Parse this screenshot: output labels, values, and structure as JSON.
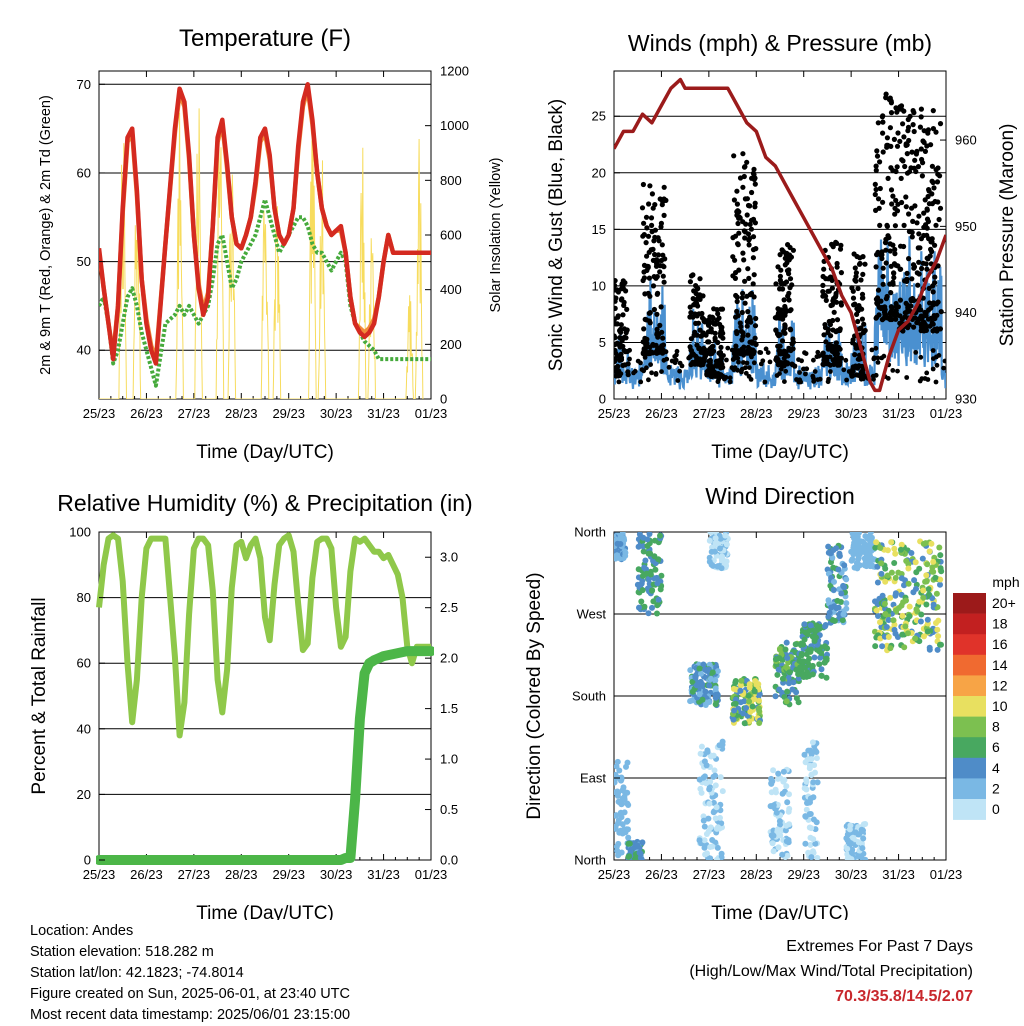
{
  "metadata": {
    "location": "Location: Andes",
    "elevation": "Station elevation: 518.282 m",
    "latlon": "Station lat/lon: 42.1823; -74.8014",
    "created": "Figure created on Sun, 2025-06-01, at 23:40 UTC",
    "recent": "Most recent data timestamp: 2025/06/01 23:15:00"
  },
  "extremes": {
    "line1": "Extremes For Past 7 Days",
    "line2": "(High/Low/Max Wind/Total Precipitation)",
    "values": "70.3/35.8/14.5/2.07",
    "color": "#c8282d"
  },
  "chart_data": [
    {
      "id": "temperature",
      "type": "line",
      "title": "Temperature (F)",
      "xlabel": "Time (Day/UTC)",
      "ylabel": "2m & 9m T (Red, Orange) & 2m Td (Green)",
      "y2label": "Solar Insolation (Yellow)",
      "xlim": [
        0,
        7
      ],
      "xticks": [
        "25/23",
        "26/23",
        "27/23",
        "28/23",
        "29/23",
        "30/23",
        "31/23",
        "01/23"
      ],
      "ylim": [
        34.5,
        71.5
      ],
      "yticks": [
        40,
        50,
        60,
        70
      ],
      "y2lim": [
        0,
        1200
      ],
      "y2ticks": [
        0,
        200,
        400,
        600,
        800,
        1000,
        1200
      ],
      "x": [
        0,
        0.1,
        0.2,
        0.3,
        0.4,
        0.5,
        0.6,
        0.7,
        0.8,
        0.9,
        1.0,
        1.1,
        1.2,
        1.4,
        1.6,
        1.7,
        1.8,
        1.9,
        2.0,
        2.1,
        2.2,
        2.3,
        2.4,
        2.5,
        2.6,
        2.7,
        2.8,
        2.9,
        3.0,
        3.1,
        3.2,
        3.3,
        3.4,
        3.5,
        3.6,
        3.7,
        3.8,
        3.9,
        4.0,
        4.1,
        4.2,
        4.3,
        4.4,
        4.5,
        4.6,
        4.7,
        4.8,
        4.9,
        5.0,
        5.1,
        5.2,
        5.3,
        5.4,
        5.5,
        5.6,
        5.7,
        5.8,
        5.9,
        6.0,
        6.1,
        6.2,
        6.3,
        6.4,
        6.5,
        6.6,
        6.7,
        6.8,
        6.9,
        7.0
      ],
      "series": [
        {
          "name": "2m T",
          "color": "#d42a20",
          "values": [
            51.5,
            47,
            43,
            39,
            45,
            56,
            64,
            65,
            58,
            48,
            43,
            40,
            38.5,
            52,
            65,
            69.5,
            68,
            62,
            53,
            47,
            44,
            46,
            54,
            64,
            66,
            61,
            55,
            52,
            51.5,
            53,
            55,
            59,
            64,
            65,
            62,
            56,
            53,
            52,
            53,
            56,
            63,
            68,
            70,
            66,
            60,
            56,
            54,
            53,
            53.5,
            54,
            51,
            46,
            43,
            42,
            41.5,
            42,
            43,
            46,
            50,
            53,
            51,
            51,
            51,
            51,
            51,
            51,
            51,
            51,
            51
          ]
        },
        {
          "name": "9m T",
          "color": "#f08c3a",
          "values": [
            51,
            47,
            43,
            39.5,
            45,
            55.5,
            63.5,
            64.5,
            57.5,
            48,
            43.5,
            40.5,
            39,
            52,
            64.5,
            69,
            67.5,
            61.5,
            53,
            47.5,
            44.5,
            46.5,
            54,
            63.5,
            65.5,
            60.5,
            55,
            52,
            51.5,
            53,
            55,
            58.5,
            63.5,
            64.5,
            61.5,
            56,
            53,
            52,
            53,
            56,
            62.5,
            67.5,
            69.5,
            65.5,
            60,
            56,
            54,
            53,
            53.5,
            53.5,
            51,
            46,
            43,
            42.5,
            42,
            42.5,
            43.5,
            46,
            50,
            53,
            51,
            51,
            51,
            51,
            51,
            51,
            51,
            51,
            51
          ]
        },
        {
          "name": "2m Td",
          "color": "#46aa3c",
          "values": [
            45,
            46,
            43,
            38.5,
            40,
            43,
            46,
            47,
            45,
            42,
            40,
            38,
            36,
            43,
            44,
            45,
            44,
            45,
            44,
            43,
            44,
            45,
            48,
            52,
            53,
            50,
            47,
            48,
            50,
            51,
            52,
            53,
            55,
            57,
            55,
            53,
            51,
            52,
            53,
            54,
            55,
            55,
            54,
            52,
            51,
            51,
            50,
            49,
            50,
            51,
            50,
            45,
            43,
            42,
            41,
            40.5,
            40,
            39,
            39,
            39,
            39,
            39,
            39,
            39,
            39,
            39,
            39,
            39,
            39
          ]
        }
      ],
      "solar": {
        "name": "Solar Insolation",
        "color": "#f7dc5e",
        "peaks": [
          {
            "x": 0.5,
            "value": 1050
          },
          {
            "x": 0.8,
            "value": 900
          },
          {
            "x": 1.7,
            "value": 1100
          },
          {
            "x": 2.1,
            "value": 1150
          },
          {
            "x": 2.55,
            "value": 1150
          },
          {
            "x": 2.8,
            "value": 950
          },
          {
            "x": 3.5,
            "value": 950
          },
          {
            "x": 3.75,
            "value": 800
          },
          {
            "x": 4.5,
            "value": 1050
          },
          {
            "x": 4.7,
            "value": 900
          },
          {
            "x": 5.55,
            "value": 1000
          },
          {
            "x": 5.75,
            "value": 700
          },
          {
            "x": 6.55,
            "value": 400
          },
          {
            "x": 6.75,
            "value": 1000
          }
        ]
      }
    },
    {
      "id": "winds",
      "type": "scatter",
      "title": "Winds (mph) & Pressure (mb)",
      "xlabel": "Time (Day/UTC)",
      "ylabel": "Sonic Wind & Gust (Blue, Black)",
      "y2label": "Station Pressure (Maroon)",
      "xlim": [
        0,
        7
      ],
      "xticks": [
        "25/23",
        "26/23",
        "27/23",
        "28/23",
        "29/23",
        "30/23",
        "31/23",
        "01/23"
      ],
      "ylim": [
        0,
        29
      ],
      "yticks": [
        0,
        5,
        10,
        15,
        20,
        25
      ],
      "y2lim": [
        930,
        968
      ],
      "y2ticks": [
        930,
        940,
        950,
        960
      ],
      "gust_color": "#000000",
      "wind_color": "#4a90d0",
      "gust_clusters": [
        {
          "start": 0.0,
          "end": 0.3,
          "peak": 11,
          "base": 2
        },
        {
          "start": 0.6,
          "end": 1.1,
          "peak": 19,
          "base": 4
        },
        {
          "start": 1.6,
          "end": 1.9,
          "peak": 11,
          "base": 3
        },
        {
          "start": 1.9,
          "end": 2.3,
          "peak": 8,
          "base": 2
        },
        {
          "start": 2.5,
          "end": 3.0,
          "peak": 22,
          "base": 4
        },
        {
          "start": 3.4,
          "end": 3.8,
          "peak": 14,
          "base": 3
        },
        {
          "start": 4.4,
          "end": 4.8,
          "peak": 14,
          "base": 3
        },
        {
          "start": 5.0,
          "end": 5.3,
          "peak": 13,
          "base": 2
        },
        {
          "start": 5.5,
          "end": 6.0,
          "peak": 27,
          "base": 7
        },
        {
          "start": 6.0,
          "end": 6.9,
          "peak": 26,
          "base": 6
        }
      ],
      "pressure": {
        "name": "Station Pressure",
        "color": "#9b1b1b",
        "x": [
          0,
          0.2,
          0.4,
          0.6,
          0.8,
          1.0,
          1.2,
          1.4,
          1.5,
          1.6,
          1.8,
          2.0,
          2.2,
          2.4,
          2.6,
          2.8,
          3.0,
          3.2,
          3.4,
          3.6,
          3.8,
          4.0,
          4.2,
          4.4,
          4.6,
          4.8,
          5.0,
          5.2,
          5.4,
          5.5,
          5.6,
          5.8,
          6.0,
          6.2,
          6.4,
          6.6,
          6.8,
          7.0
        ],
        "values": [
          959,
          961,
          961,
          963,
          962,
          964,
          966,
          967,
          966,
          966,
          966,
          966,
          966,
          966,
          964,
          962,
          961,
          958,
          957,
          955,
          953,
          951,
          949,
          947,
          945,
          942,
          940,
          936,
          932,
          931,
          931,
          935,
          938,
          939,
          941,
          944,
          946,
          949
        ]
      }
    },
    {
      "id": "humidity",
      "type": "line",
      "title": "Relative Humidity (%) & Precipitation (in)",
      "xlabel": "Time (Day/UTC)",
      "ylabel": "Percent & Total Rainfall",
      "xlim": [
        0,
        7
      ],
      "xticks": [
        "25/23",
        "26/23",
        "27/23",
        "28/23",
        "29/23",
        "30/23",
        "31/23",
        "01/23"
      ],
      "ylim": [
        0,
        100
      ],
      "yticks": [
        0,
        20,
        40,
        60,
        80,
        100
      ],
      "y2lim": [
        0,
        3.25
      ],
      "y2ticks": [
        "0.0",
        "0.5",
        "1.0",
        "1.5",
        "2.0",
        "2.5",
        "3.0"
      ],
      "x": [
        0,
        0.1,
        0.2,
        0.3,
        0.4,
        0.5,
        0.6,
        0.7,
        0.8,
        0.9,
        1.0,
        1.1,
        1.2,
        1.4,
        1.6,
        1.7,
        1.8,
        1.9,
        2.0,
        2.1,
        2.2,
        2.3,
        2.4,
        2.5,
        2.6,
        2.7,
        2.8,
        2.9,
        3.0,
        3.1,
        3.2,
        3.3,
        3.4,
        3.5,
        3.6,
        3.7,
        3.8,
        3.9,
        4.0,
        4.1,
        4.2,
        4.3,
        4.4,
        4.5,
        4.6,
        4.7,
        4.8,
        4.9,
        5.0,
        5.1,
        5.2,
        5.3,
        5.4,
        5.5,
        5.6,
        5.7,
        5.8,
        5.9,
        6.0,
        6.1,
        6.2,
        6.3,
        6.4,
        6.5,
        6.6,
        6.7,
        6.8,
        6.9,
        7.0
      ],
      "series": [
        {
          "name": "Relative Humidity",
          "color": "#8fc84a",
          "values": [
            77,
            90,
            98,
            99,
            98,
            85,
            60,
            42,
            55,
            80,
            95,
            98,
            98,
            98,
            62,
            38,
            48,
            75,
            95,
            98,
            98,
            96,
            82,
            55,
            45,
            58,
            83,
            96,
            97,
            92,
            96,
            98,
            92,
            74,
            67,
            84,
            96,
            98,
            99,
            94,
            78,
            64,
            66,
            86,
            97,
            98,
            98,
            95,
            77,
            65,
            68,
            88,
            98,
            97,
            98,
            96,
            94,
            94,
            92,
            93,
            90,
            87,
            80,
            65,
            60,
            65,
            65,
            65,
            65
          ]
        },
        {
          "name": "Total Rainfall",
          "color": "#4cb648",
          "values": [
            0,
            0,
            0,
            0,
            0,
            0,
            0,
            0,
            0,
            0,
            0,
            0,
            0,
            0,
            0,
            0,
            0,
            0,
            0,
            0,
            0,
            0,
            0,
            0,
            0,
            0,
            0,
            0,
            0,
            0,
            0,
            0,
            0,
            0,
            0,
            0,
            0,
            0,
            0,
            0,
            0,
            0,
            0,
            0,
            0,
            0,
            0,
            0,
            0,
            0,
            0.02,
            0.02,
            0.6,
            1.4,
            1.85,
            1.95,
            1.98,
            2.0,
            2.02,
            2.03,
            2.04,
            2.05,
            2.06,
            2.07,
            2.07,
            2.07,
            2.07,
            2.07,
            2.07
          ]
        }
      ]
    },
    {
      "id": "direction",
      "type": "scatter",
      "title": "Wind Direction",
      "xlabel": "Time (Day/UTC)",
      "ylabel": "Direction (Colored By Speed)",
      "xlim": [
        0,
        7
      ],
      "xticks": [
        "25/23",
        "26/23",
        "27/23",
        "28/23",
        "29/23",
        "30/23",
        "31/23",
        "01/23"
      ],
      "ylim": [
        0,
        360
      ],
      "yticks": [
        "North",
        "East",
        "South",
        "West",
        "North"
      ],
      "legend": {
        "title": "mph",
        "labels": [
          "20+",
          "18",
          "16",
          "14",
          "12",
          "10",
          "8",
          "6",
          "4",
          "2",
          "0"
        ],
        "colors": [
          "#9c1a1a",
          "#c22020",
          "#e0332a",
          "#f06a30",
          "#f7a446",
          "#e8e060",
          "#7cc050",
          "#48a860",
          "#4f8cc8",
          "#7ab8e4",
          "#bfe4f6"
        ]
      },
      "clusters": [
        {
          "start": 0.0,
          "end": 0.25,
          "dir": [
            330,
            360
          ],
          "speed": [
            2,
            4
          ]
        },
        {
          "start": 0.0,
          "end": 0.3,
          "dir": [
            0,
            110
          ],
          "speed": [
            1,
            3
          ]
        },
        {
          "start": 0.3,
          "end": 0.6,
          "dir": [
            0,
            20
          ],
          "speed": [
            2,
            6
          ]
        },
        {
          "start": 0.5,
          "end": 1.0,
          "dir": [
            270,
            360
          ],
          "speed": [
            3,
            7
          ]
        },
        {
          "start": 1.6,
          "end": 2.2,
          "dir": [
            170,
            215
          ],
          "speed": [
            2,
            6
          ]
        },
        {
          "start": 1.8,
          "end": 2.3,
          "dir": [
            0,
            130
          ],
          "speed": [
            0,
            2
          ]
        },
        {
          "start": 2.0,
          "end": 2.4,
          "dir": [
            320,
            360
          ],
          "speed": [
            0,
            2
          ]
        },
        {
          "start": 2.5,
          "end": 3.1,
          "dir": [
            150,
            200
          ],
          "speed": [
            3,
            11
          ]
        },
        {
          "start": 3.3,
          "end": 3.7,
          "dir": [
            0,
            100
          ],
          "speed": [
            0,
            2
          ]
        },
        {
          "start": 3.4,
          "end": 3.9,
          "dir": [
            170,
            240
          ],
          "speed": [
            3,
            8
          ]
        },
        {
          "start": 3.9,
          "end": 4.5,
          "dir": [
            200,
            260
          ],
          "speed": [
            4,
            7
          ]
        },
        {
          "start": 4.0,
          "end": 4.3,
          "dir": [
            0,
            130
          ],
          "speed": [
            0,
            2
          ]
        },
        {
          "start": 4.5,
          "end": 4.9,
          "dir": [
            260,
            350
          ],
          "speed": [
            2,
            6
          ]
        },
        {
          "start": 4.9,
          "end": 5.3,
          "dir": [
            0,
            40
          ],
          "speed": [
            0,
            2
          ]
        },
        {
          "start": 5.0,
          "end": 5.5,
          "dir": [
            320,
            360
          ],
          "speed": [
            1,
            3
          ]
        },
        {
          "start": 5.5,
          "end": 6.9,
          "dir": [
            230,
            350
          ],
          "speed": [
            3,
            11
          ]
        }
      ]
    }
  ]
}
